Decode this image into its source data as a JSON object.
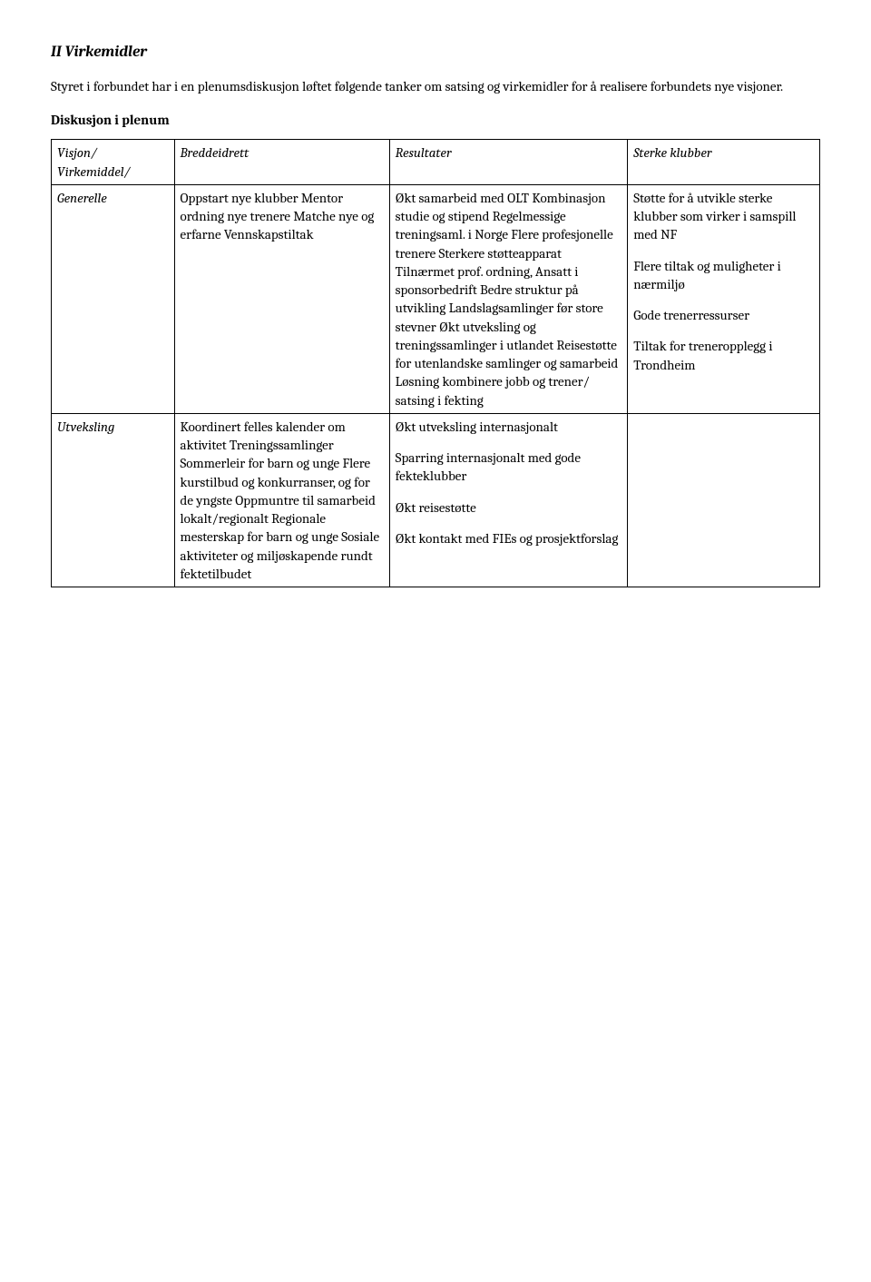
{
  "section_title": "II Virkemidler",
  "intro": "Styret i forbundet har i en plenumsdiskusjon løftet følgende tanker om satsing og virkemidler for å realisere forbundets nye visjoner.",
  "subhead": "Diskusjon i plenum",
  "header": {
    "col1": "Visjon/ Virkemiddel/",
    "col2": "Breddeidrett",
    "col3": "Resultater",
    "col4": "Sterke klubber"
  },
  "row_generelle": {
    "label": "Generelle",
    "col2": "Oppstart nye klubber\nMentor ordning nye trenere\nMatche nye og erfarne\nVennskapstiltak",
    "col3": "Økt samarbeid med OLT\nKombinasjon studie og stipend\nRegelmessige treningsaml. i Norge\nFlere profesjonelle trenere\nSterkere støtteapparat\nTilnærmet prof. ordning,\nAnsatt i sponsorbedrift\nBedre struktur på utvikling\nLandslagsamlinger før store stevner\nØkt utveksling og treningssamlinger i utlandet\nReisestøtte for utenlandske samlinger og samarbeid\nLøsning kombinere jobb og trener/ satsing i fekting",
    "col4_p1": "Støtte for å utvikle sterke klubber som virker i samspill med NF",
    "col4_p2": "Flere tiltak og muligheter i nærmiljø",
    "col4_p3": "Gode trenerressurser",
    "col4_p4": "Tiltak for treneropplegg i Trondheim"
  },
  "row_utveksling": {
    "label": "Utveksling",
    "col2": "Koordinert felles kalender om aktivitet\nTreningssamlinger\nSommerleir for barn og unge\nFlere kurstilbud og konkurranser, og for de yngste\nOppmuntre til samarbeid lokalt/regionalt\nRegionale mesterskap for barn og unge\nSosiale aktiviteter og miljøskapende rundt fektetilbudet",
    "col3_p1": "Økt utveksling internasjonalt",
    "col3_p2": "Sparring internasjonalt med gode fekteklubber",
    "col3_p3": "Økt reisestøtte",
    "col3_p4": "Økt kontakt med FIEs og prosjektforslag",
    "col4": ""
  }
}
